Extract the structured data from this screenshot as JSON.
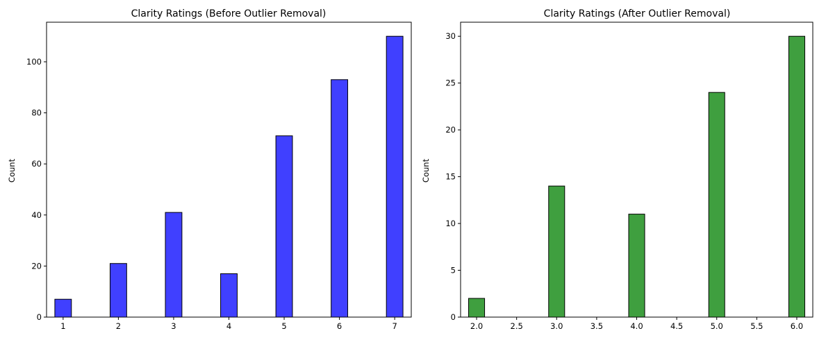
{
  "chart_data": [
    {
      "type": "bar",
      "title": "Clarity Ratings (Before Outlier Removal)",
      "xlabel": "",
      "ylabel": "Count",
      "xlim": [
        0.7,
        7.3
      ],
      "ylim": [
        0,
        115.5
      ],
      "bin_width": 0.3,
      "x": [
        1,
        2,
        3,
        4,
        5,
        6,
        7
      ],
      "values": [
        7,
        21,
        41,
        17,
        71,
        93,
        110
      ],
      "xticks": [
        1,
        2,
        3,
        4,
        5,
        6,
        7
      ],
      "xtick_labels": [
        "1",
        "2",
        "3",
        "4",
        "5",
        "6",
        "7"
      ],
      "yticks": [
        0,
        20,
        40,
        60,
        80,
        100
      ],
      "ytick_labels": [
        "0",
        "20",
        "40",
        "60",
        "80",
        "100"
      ],
      "bar_color": "#4040ff",
      "edge_color": "#000000",
      "grid": false
    },
    {
      "type": "bar",
      "title": "Clarity Ratings (After Outlier Removal)",
      "xlabel": "",
      "ylabel": "Count",
      "xlim": [
        1.8,
        6.2
      ],
      "ylim": [
        0,
        31.5
      ],
      "bin_width": 0.2,
      "x": [
        2,
        3,
        4,
        5,
        6
      ],
      "values": [
        2,
        14,
        11,
        24,
        30
      ],
      "xticks": [
        2.0,
        2.5,
        3.0,
        3.5,
        4.0,
        4.5,
        5.0,
        5.5,
        6.0
      ],
      "xtick_labels": [
        "2.0",
        "2.5",
        "3.0",
        "3.5",
        "4.0",
        "4.5",
        "5.0",
        "5.5",
        "6.0"
      ],
      "yticks": [
        0,
        5,
        10,
        15,
        20,
        25,
        30
      ],
      "ytick_labels": [
        "0",
        "5",
        "10",
        "15",
        "20",
        "25",
        "30"
      ],
      "bar_color": "#3f9f3f",
      "edge_color": "#000000",
      "grid": false
    }
  ]
}
